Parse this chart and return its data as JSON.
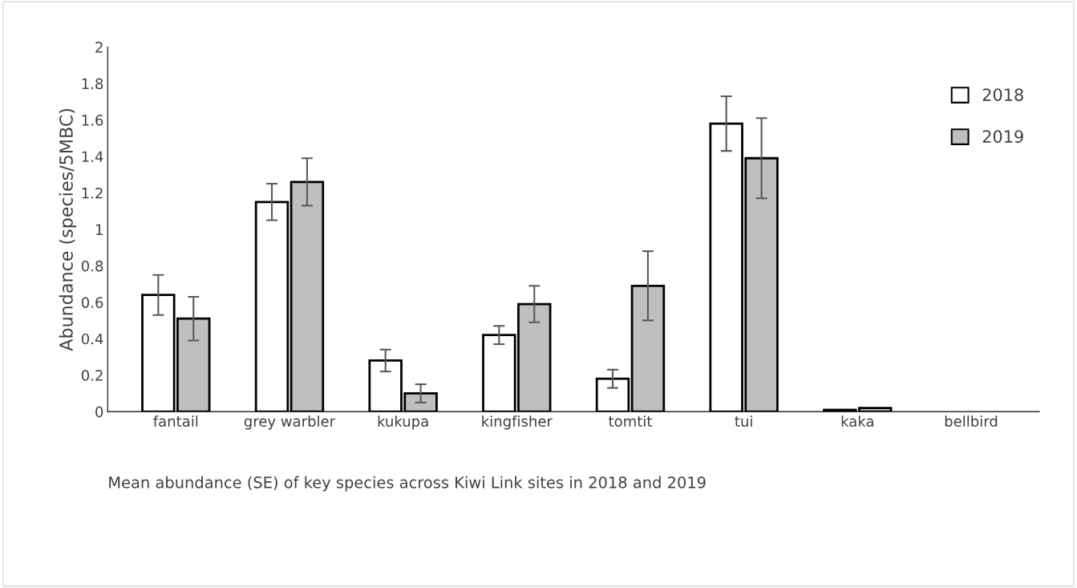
{
  "chart_data": {
    "type": "bar",
    "categories": [
      "fantail",
      "grey warbler",
      "kukupa",
      "kingfisher",
      "tomtit",
      "tui",
      "kaka",
      "bellbird"
    ],
    "series": [
      {
        "name": "2018",
        "color": "#ffffff",
        "values": [
          0.64,
          1.15,
          0.28,
          0.42,
          0.18,
          1.58,
          0.01,
          null
        ],
        "errors": [
          0.11,
          0.1,
          0.06,
          0.05,
          0.05,
          0.15,
          null,
          null
        ]
      },
      {
        "name": "2019",
        "color": "#bfbfbf",
        "values": [
          0.51,
          1.26,
          0.1,
          0.59,
          0.69,
          1.39,
          0.02,
          null
        ],
        "errors": [
          0.12,
          0.13,
          0.05,
          0.1,
          0.19,
          0.22,
          null,
          null
        ]
      }
    ],
    "ylabel": "Abundance (species/5MBC)",
    "ylim": [
      0,
      2
    ],
    "yticks": [
      0,
      0.2,
      0.4,
      0.6,
      0.8,
      1,
      1.2,
      1.4,
      1.6,
      1.8,
      2
    ],
    "grid": false,
    "legend": "top right",
    "annotations": [
      "Mean abundance (SE) of key species across Kiwi Link sites in 2018 and 2019"
    ]
  }
}
